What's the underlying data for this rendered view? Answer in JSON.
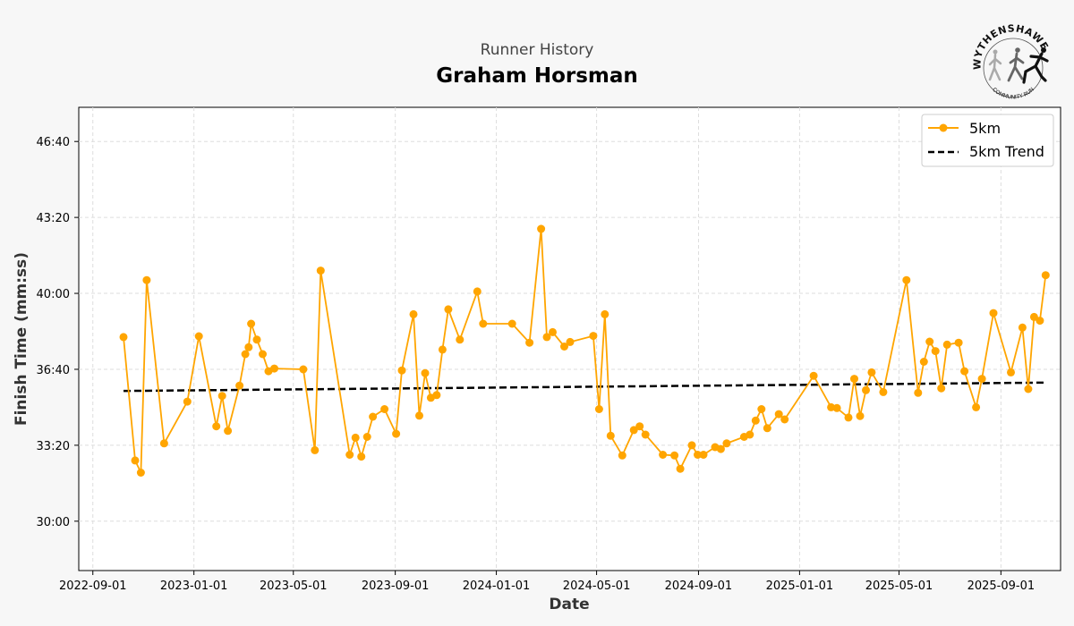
{
  "header": {
    "subtitle": "Runner History",
    "title": "Graham Horsman"
  },
  "logo": {
    "top_text": "WYTHENSHAWE",
    "bottom_text": "COMMUNITY RUN"
  },
  "chart_data": {
    "type": "line",
    "xlabel": "Date",
    "ylabel": "Finish Time (mm:ss)",
    "x_tick_labels": [
      "2022-09-01",
      "2023-01-01",
      "2023-05-01",
      "2023-09-01",
      "2024-01-01",
      "2024-05-01",
      "2024-09-01",
      "2025-01-01",
      "2025-05-01",
      "2025-09-01"
    ],
    "y_tick_labels": [
      "30:00",
      "33:20",
      "36:40",
      "40:00",
      "43:20",
      "46:40"
    ],
    "xlim": [
      "2022-08-15",
      "2025-11-12"
    ],
    "ylim": [
      "27:50",
      "48:10"
    ],
    "grid": true,
    "legend_position": "top-right",
    "colors": {
      "series": "#FFA500",
      "trend": "#000000"
    },
    "series": [
      {
        "name": "5km",
        "points": [
          [
            "2022-10-08",
            "38:05"
          ],
          [
            "2022-10-22",
            "32:40"
          ],
          [
            "2022-10-29",
            "32:08"
          ],
          [
            "2022-11-05",
            "40:35"
          ],
          [
            "2022-11-26",
            "33:25"
          ],
          [
            "2022-12-24",
            "35:15"
          ],
          [
            "2023-01-07",
            "38:07"
          ],
          [
            "2023-01-28",
            "34:10"
          ],
          [
            "2023-02-04",
            "35:30"
          ],
          [
            "2023-02-11",
            "33:58"
          ],
          [
            "2023-02-25",
            "35:57"
          ],
          [
            "2023-03-04",
            "37:20"
          ],
          [
            "2023-03-08",
            "37:38"
          ],
          [
            "2023-03-11",
            "38:40"
          ],
          [
            "2023-03-18",
            "37:58"
          ],
          [
            "2023-03-25",
            "37:20"
          ],
          [
            "2023-04-01",
            "36:35"
          ],
          [
            "2023-04-08",
            "36:42"
          ],
          [
            "2023-05-13",
            "36:40"
          ],
          [
            "2023-05-27",
            "33:07"
          ],
          [
            "2023-06-03",
            "41:00"
          ],
          [
            "2023-07-08",
            "32:55"
          ],
          [
            "2023-07-15",
            "33:40"
          ],
          [
            "2023-07-22",
            "32:50"
          ],
          [
            "2023-07-29",
            "33:42"
          ],
          [
            "2023-08-05",
            "34:35"
          ],
          [
            "2023-08-19",
            "34:55"
          ],
          [
            "2023-09-02",
            "33:50"
          ],
          [
            "2023-09-09",
            "36:37"
          ],
          [
            "2023-09-23",
            "39:05"
          ],
          [
            "2023-09-30",
            "34:38"
          ],
          [
            "2023-10-07",
            "36:30"
          ],
          [
            "2023-10-14",
            "35:25"
          ],
          [
            "2023-10-21",
            "35:32"
          ],
          [
            "2023-10-28",
            "37:32"
          ],
          [
            "2023-11-04",
            "39:18"
          ],
          [
            "2023-11-18",
            "37:58"
          ],
          [
            "2023-12-09",
            "40:05"
          ],
          [
            "2023-12-16",
            "38:40"
          ],
          [
            "2024-01-20",
            "38:40"
          ],
          [
            "2024-02-10",
            "37:50"
          ],
          [
            "2024-02-24",
            "42:50"
          ],
          [
            "2024-03-02",
            "38:05"
          ],
          [
            "2024-03-09",
            "38:18"
          ],
          [
            "2024-03-23",
            "37:40"
          ],
          [
            "2024-03-30",
            "37:52"
          ],
          [
            "2024-04-27",
            "38:08"
          ],
          [
            "2024-05-04",
            "34:55"
          ],
          [
            "2024-05-11",
            "39:05"
          ],
          [
            "2024-05-18",
            "33:45"
          ],
          [
            "2024-06-01",
            "32:53"
          ],
          [
            "2024-06-15",
            "34:00"
          ],
          [
            "2024-06-22",
            "34:10"
          ],
          [
            "2024-06-29",
            "33:48"
          ],
          [
            "2024-07-20",
            "32:55"
          ],
          [
            "2024-08-03",
            "32:53"
          ],
          [
            "2024-08-10",
            "32:18"
          ],
          [
            "2024-08-24",
            "33:20"
          ],
          [
            "2024-08-31",
            "32:55"
          ],
          [
            "2024-09-07",
            "32:55"
          ],
          [
            "2024-09-21",
            "33:15"
          ],
          [
            "2024-09-28",
            "33:10"
          ],
          [
            "2024-10-05",
            "33:25"
          ],
          [
            "2024-10-26",
            "33:42"
          ],
          [
            "2024-11-02",
            "33:48"
          ],
          [
            "2024-11-09",
            "34:25"
          ],
          [
            "2024-11-16",
            "34:55"
          ],
          [
            "2024-11-23",
            "34:05"
          ],
          [
            "2024-12-07",
            "34:42"
          ],
          [
            "2024-12-14",
            "34:28"
          ],
          [
            "2025-01-18",
            "36:23"
          ],
          [
            "2025-02-08",
            "35:00"
          ],
          [
            "2025-02-15",
            "34:58"
          ],
          [
            "2025-03-01",
            "34:33"
          ],
          [
            "2025-03-08",
            "36:15"
          ],
          [
            "2025-03-15",
            "34:37"
          ],
          [
            "2025-03-22",
            "35:45"
          ],
          [
            "2025-03-29",
            "36:32"
          ],
          [
            "2025-04-12",
            "35:40"
          ],
          [
            "2025-05-10",
            "40:35"
          ],
          [
            "2025-05-24",
            "35:38"
          ],
          [
            "2025-05-31",
            "37:00"
          ],
          [
            "2025-06-07",
            "37:53"
          ],
          [
            "2025-06-14",
            "37:28"
          ],
          [
            "2025-06-21",
            "35:50"
          ],
          [
            "2025-06-28",
            "37:45"
          ],
          [
            "2025-07-12",
            "37:50"
          ],
          [
            "2025-07-19",
            "36:35"
          ],
          [
            "2025-08-02",
            "35:00"
          ],
          [
            "2025-08-09",
            "36:15"
          ],
          [
            "2025-08-23",
            "39:08"
          ],
          [
            "2025-09-13",
            "36:32"
          ],
          [
            "2025-09-27",
            "38:30"
          ],
          [
            "2025-10-04",
            "35:48"
          ],
          [
            "2025-10-11",
            "38:58"
          ],
          [
            "2025-10-18",
            "38:48"
          ],
          [
            "2025-10-25",
            "40:48"
          ]
        ]
      },
      {
        "name": "5km Trend",
        "points": [
          [
            "2022-10-08",
            "35:43"
          ],
          [
            "2025-10-25",
            "36:05"
          ]
        ]
      }
    ]
  }
}
